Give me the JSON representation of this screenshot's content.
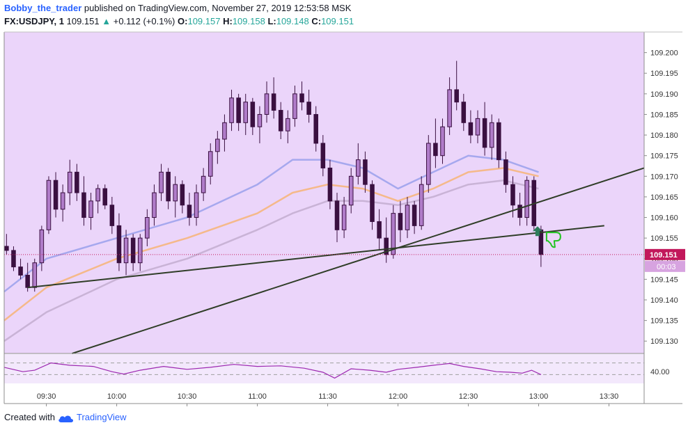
{
  "header": {
    "author": "Bobby_the_trader",
    "published_text": "published on TradingView.com, November 27, 2019 12:53:58 MSK",
    "symbol": "FX:USDJPY, 1",
    "last_price": "109.151",
    "change": "+0.112 (+0.1%)",
    "open_label": "O:",
    "open_value": "109.157",
    "high_label": "H:",
    "high_value": "109.158",
    "low_label": "L:",
    "low_value": "109.148",
    "close_label": "C:",
    "close_value": "109.151"
  },
  "footer": {
    "created_with": "Created with",
    "brand": "TradingView"
  },
  "colors": {
    "background": "#ebd5fa",
    "indicator_bg": "#f3e8fc",
    "candle": "#3a1040",
    "ma_fast": "#a6a8ee",
    "ma_mid": "#f5b98a",
    "ma_slow": "#c9b3d6",
    "trendline": "#2f3d27",
    "oscillator": "#9c27b0",
    "price_label_bg": "#c2185b",
    "up_arrow": "#2e7d5b",
    "thumb_down": "#22c422"
  },
  "chart_data": {
    "type": "candlestick",
    "symbol": "FX:USDJPY",
    "interval": "1",
    "y_ticks": [
      "109.200",
      "109.195",
      "109.190",
      "109.185",
      "109.180",
      "109.175",
      "109.170",
      "109.165",
      "109.160",
      "109.155",
      "109.150",
      "109.145",
      "109.140",
      "109.135",
      "109.130"
    ],
    "x_ticks": [
      "09:30",
      "10:00",
      "10:30",
      "11:00",
      "11:30",
      "12:00",
      "12:30",
      "13:00",
      "13:30"
    ],
    "ylim": [
      109.127,
      109.205
    ],
    "xlim": [
      "09:12",
      "13:45"
    ],
    "current_price": "109.151",
    "countdown": "00:03",
    "candles": [
      {
        "t": "09:13",
        "o": 109.153,
        "h": 109.156,
        "l": 109.151,
        "c": 109.152
      },
      {
        "t": "09:16",
        "o": 109.152,
        "h": 109.153,
        "l": 109.147,
        "c": 109.148
      },
      {
        "t": "09:19",
        "o": 109.148,
        "h": 109.15,
        "l": 109.145,
        "c": 109.146
      },
      {
        "t": "09:22",
        "o": 109.146,
        "h": 109.149,
        "l": 109.142,
        "c": 109.143
      },
      {
        "t": "09:25",
        "o": 109.143,
        "h": 109.15,
        "l": 109.142,
        "c": 109.149
      },
      {
        "t": "09:28",
        "o": 109.149,
        "h": 109.158,
        "l": 109.147,
        "c": 109.157
      },
      {
        "t": "09:31",
        "o": 109.157,
        "h": 109.17,
        "l": 109.156,
        "c": 109.169
      },
      {
        "t": "09:34",
        "o": 109.169,
        "h": 109.171,
        "l": 109.16,
        "c": 109.162
      },
      {
        "t": "09:37",
        "o": 109.162,
        "h": 109.168,
        "l": 109.159,
        "c": 109.166
      },
      {
        "t": "09:40",
        "o": 109.166,
        "h": 109.174,
        "l": 109.163,
        "c": 109.171
      },
      {
        "t": "09:43",
        "o": 109.171,
        "h": 109.173,
        "l": 109.164,
        "c": 109.166
      },
      {
        "t": "09:46",
        "o": 109.166,
        "h": 109.17,
        "l": 109.158,
        "c": 109.16
      },
      {
        "t": "09:49",
        "o": 109.16,
        "h": 109.166,
        "l": 109.157,
        "c": 109.164
      },
      {
        "t": "09:52",
        "o": 109.164,
        "h": 109.168,
        "l": 109.161,
        "c": 109.167
      },
      {
        "t": "09:55",
        "o": 109.167,
        "h": 109.168,
        "l": 109.162,
        "c": 109.163
      },
      {
        "t": "09:58",
        "o": 109.163,
        "h": 109.165,
        "l": 109.156,
        "c": 109.158
      },
      {
        "t": "10:01",
        "o": 109.158,
        "h": 109.161,
        "l": 109.147,
        "c": 109.149
      },
      {
        "t": "10:04",
        "o": 109.149,
        "h": 109.157,
        "l": 109.146,
        "c": 109.155
      },
      {
        "t": "10:07",
        "o": 109.155,
        "h": 109.156,
        "l": 109.147,
        "c": 109.149
      },
      {
        "t": "10:10",
        "o": 109.149,
        "h": 109.156,
        "l": 109.147,
        "c": 109.155
      },
      {
        "t": "10:13",
        "o": 109.155,
        "h": 109.162,
        "l": 109.153,
        "c": 109.16
      },
      {
        "t": "10:16",
        "o": 109.16,
        "h": 109.168,
        "l": 109.158,
        "c": 109.166
      },
      {
        "t": "10:19",
        "o": 109.166,
        "h": 109.173,
        "l": 109.164,
        "c": 109.171
      },
      {
        "t": "10:22",
        "o": 109.171,
        "h": 109.172,
        "l": 109.162,
        "c": 109.164
      },
      {
        "t": "10:25",
        "o": 109.164,
        "h": 109.17,
        "l": 109.16,
        "c": 109.168
      },
      {
        "t": "10:28",
        "o": 109.168,
        "h": 109.169,
        "l": 109.161,
        "c": 109.163
      },
      {
        "t": "10:31",
        "o": 109.163,
        "h": 109.166,
        "l": 109.158,
        "c": 109.16
      },
      {
        "t": "10:34",
        "o": 109.16,
        "h": 109.168,
        "l": 109.158,
        "c": 109.166
      },
      {
        "t": "10:37",
        "o": 109.166,
        "h": 109.172,
        "l": 109.164,
        "c": 109.17
      },
      {
        "t": "10:40",
        "o": 109.17,
        "h": 109.178,
        "l": 109.168,
        "c": 109.176
      },
      {
        "t": "10:43",
        "o": 109.176,
        "h": 109.181,
        "l": 109.173,
        "c": 109.179
      },
      {
        "t": "10:46",
        "o": 109.179,
        "h": 109.185,
        "l": 109.176,
        "c": 109.183
      },
      {
        "t": "10:49",
        "o": 109.183,
        "h": 109.191,
        "l": 109.181,
        "c": 109.189
      },
      {
        "t": "10:52",
        "o": 109.189,
        "h": 109.19,
        "l": 109.181,
        "c": 109.183
      },
      {
        "t": "10:55",
        "o": 109.183,
        "h": 109.19,
        "l": 109.18,
        "c": 109.188
      },
      {
        "t": "10:58",
        "o": 109.188,
        "h": 109.189,
        "l": 109.18,
        "c": 109.182
      },
      {
        "t": "11:01",
        "o": 109.182,
        "h": 109.187,
        "l": 109.178,
        "c": 109.185
      },
      {
        "t": "11:04",
        "o": 109.185,
        "h": 109.193,
        "l": 109.183,
        "c": 109.19
      },
      {
        "t": "11:07",
        "o": 109.19,
        "h": 109.194,
        "l": 109.184,
        "c": 109.186
      },
      {
        "t": "11:10",
        "o": 109.186,
        "h": 109.188,
        "l": 109.179,
        "c": 109.181
      },
      {
        "t": "11:13",
        "o": 109.181,
        "h": 109.186,
        "l": 109.178,
        "c": 109.184
      },
      {
        "t": "11:16",
        "o": 109.184,
        "h": 109.192,
        "l": 109.182,
        "c": 109.19
      },
      {
        "t": "11:19",
        "o": 109.19,
        "h": 109.193,
        "l": 109.186,
        "c": 109.188
      },
      {
        "t": "11:22",
        "o": 109.188,
        "h": 109.191,
        "l": 109.183,
        "c": 109.185
      },
      {
        "t": "11:25",
        "o": 109.185,
        "h": 109.187,
        "l": 109.176,
        "c": 109.178
      },
      {
        "t": "11:28",
        "o": 109.178,
        "h": 109.18,
        "l": 109.17,
        "c": 109.172
      },
      {
        "t": "11:31",
        "o": 109.172,
        "h": 109.174,
        "l": 109.162,
        "c": 109.164
      },
      {
        "t": "11:34",
        "o": 109.164,
        "h": 109.166,
        "l": 109.154,
        "c": 109.157
      },
      {
        "t": "11:37",
        "o": 109.157,
        "h": 109.165,
        "l": 109.155,
        "c": 109.163
      },
      {
        "t": "11:40",
        "o": 109.163,
        "h": 109.172,
        "l": 109.161,
        "c": 109.17
      },
      {
        "t": "11:43",
        "o": 109.17,
        "h": 109.178,
        "l": 109.168,
        "c": 109.174
      },
      {
        "t": "11:46",
        "o": 109.174,
        "h": 109.176,
        "l": 109.166,
        "c": 109.168
      },
      {
        "t": "11:49",
        "o": 109.168,
        "h": 109.169,
        "l": 109.157,
        "c": 109.159
      },
      {
        "t": "11:52",
        "o": 109.159,
        "h": 109.162,
        "l": 109.152,
        "c": 109.155
      },
      {
        "t": "11:55",
        "o": 109.155,
        "h": 109.16,
        "l": 109.149,
        "c": 109.151
      },
      {
        "t": "11:58",
        "o": 109.151,
        "h": 109.163,
        "l": 109.15,
        "c": 109.161
      },
      {
        "t": "12:01",
        "o": 109.161,
        "h": 109.164,
        "l": 109.154,
        "c": 109.157
      },
      {
        "t": "12:04",
        "o": 109.157,
        "h": 109.165,
        "l": 109.155,
        "c": 109.163
      },
      {
        "t": "12:07",
        "o": 109.163,
        "h": 109.164,
        "l": 109.156,
        "c": 109.158
      },
      {
        "t": "12:10",
        "o": 109.158,
        "h": 109.17,
        "l": 109.157,
        "c": 109.168
      },
      {
        "t": "12:13",
        "o": 109.168,
        "h": 109.18,
        "l": 109.166,
        "c": 109.178
      },
      {
        "t": "12:16",
        "o": 109.178,
        "h": 109.184,
        "l": 109.172,
        "c": 109.175
      },
      {
        "t": "12:19",
        "o": 109.175,
        "h": 109.184,
        "l": 109.173,
        "c": 109.182
      },
      {
        "t": "12:22",
        "o": 109.182,
        "h": 109.194,
        "l": 109.18,
        "c": 109.191
      },
      {
        "t": "12:25",
        "o": 109.191,
        "h": 109.198,
        "l": 109.186,
        "c": 109.188
      },
      {
        "t": "12:28",
        "o": 109.188,
        "h": 109.19,
        "l": 109.181,
        "c": 109.183
      },
      {
        "t": "12:31",
        "o": 109.183,
        "h": 109.186,
        "l": 109.178,
        "c": 109.18
      },
      {
        "t": "12:34",
        "o": 109.18,
        "h": 109.186,
        "l": 109.178,
        "c": 109.184
      },
      {
        "t": "12:37",
        "o": 109.184,
        "h": 109.188,
        "l": 109.175,
        "c": 109.177
      },
      {
        "t": "12:40",
        "o": 109.177,
        "h": 109.185,
        "l": 109.174,
        "c": 109.183
      },
      {
        "t": "12:43",
        "o": 109.183,
        "h": 109.184,
        "l": 109.172,
        "c": 109.174
      },
      {
        "t": "12:46",
        "o": 109.174,
        "h": 109.176,
        "l": 109.166,
        "c": 109.168
      },
      {
        "t": "12:49",
        "o": 109.168,
        "h": 109.17,
        "l": 109.16,
        "c": 109.163
      },
      {
        "t": "12:52",
        "o": 109.163,
        "h": 109.166,
        "l": 109.158,
        "c": 109.16
      },
      {
        "t": "12:55",
        "o": 109.16,
        "h": 109.17,
        "l": 109.158,
        "c": 109.169
      },
      {
        "t": "12:58",
        "o": 109.169,
        "h": 109.17,
        "l": 109.157,
        "c": 109.158
      },
      {
        "t": "13:01",
        "o": 109.157,
        "h": 109.158,
        "l": 109.148,
        "c": 109.151
      }
    ],
    "moving_averages": [
      {
        "color": "#a6a8ee",
        "points": [
          [
            "09:12",
            109.142
          ],
          [
            "09:30",
            109.15
          ],
          [
            "10:00",
            109.155
          ],
          [
            "10:30",
            109.16
          ],
          [
            "11:00",
            109.168
          ],
          [
            "11:15",
            109.174
          ],
          [
            "11:30",
            109.174
          ],
          [
            "11:45",
            109.172
          ],
          [
            "12:00",
            109.167
          ],
          [
            "12:15",
            109.171
          ],
          [
            "12:30",
            109.175
          ],
          [
            "12:45",
            109.174
          ],
          [
            "13:00",
            109.171
          ]
        ]
      },
      {
        "color": "#f5b98a",
        "points": [
          [
            "09:12",
            109.135
          ],
          [
            "09:30",
            109.143
          ],
          [
            "10:00",
            109.15
          ],
          [
            "10:30",
            109.155
          ],
          [
            "11:00",
            109.161
          ],
          [
            "11:15",
            109.166
          ],
          [
            "11:30",
            109.168
          ],
          [
            "11:45",
            109.167
          ],
          [
            "12:00",
            109.164
          ],
          [
            "12:15",
            109.167
          ],
          [
            "12:30",
            109.171
          ],
          [
            "12:45",
            109.172
          ],
          [
            "13:00",
            109.17
          ]
        ]
      },
      {
        "color": "#c9b3d6",
        "points": [
          [
            "09:12",
            109.13
          ],
          [
            "09:30",
            109.137
          ],
          [
            "10:00",
            109.145
          ],
          [
            "10:30",
            109.15
          ],
          [
            "11:00",
            109.157
          ],
          [
            "11:15",
            109.161
          ],
          [
            "11:30",
            109.164
          ],
          [
            "11:45",
            109.164
          ],
          [
            "12:00",
            109.163
          ],
          [
            "12:15",
            109.165
          ],
          [
            "12:30",
            109.168
          ],
          [
            "12:45",
            109.169
          ],
          [
            "13:00",
            109.167
          ]
        ]
      }
    ],
    "trendlines": [
      {
        "from": [
          "09:22",
          109.143
        ],
        "to": [
          "13:28",
          109.158
        ]
      },
      {
        "from": [
          "09:41",
          109.127
        ],
        "to": [
          "13:45",
          109.172
        ]
      }
    ],
    "oscillator": {
      "tick": "40.00",
      "ylim": [
        0,
        100
      ],
      "upper_band": 70,
      "lower_band": 30,
      "points": [
        [
          "09:12",
          55
        ],
        [
          "09:20",
          40
        ],
        [
          "09:25",
          45
        ],
        [
          "09:32",
          70
        ],
        [
          "09:40",
          62
        ],
        [
          "09:50",
          58
        ],
        [
          "09:58",
          40
        ],
        [
          "10:03",
          32
        ],
        [
          "10:10",
          45
        ],
        [
          "10:20",
          58
        ],
        [
          "10:30",
          48
        ],
        [
          "10:40",
          55
        ],
        [
          "10:50",
          65
        ],
        [
          "11:00",
          58
        ],
        [
          "11:10",
          60
        ],
        [
          "11:20",
          52
        ],
        [
          "11:28",
          38
        ],
        [
          "11:33",
          18
        ],
        [
          "11:40",
          50
        ],
        [
          "11:48",
          45
        ],
        [
          "11:55",
          38
        ],
        [
          "12:00",
          48
        ],
        [
          "12:08",
          55
        ],
        [
          "12:15",
          62
        ],
        [
          "12:22",
          68
        ],
        [
          "12:28",
          58
        ],
        [
          "12:35",
          50
        ],
        [
          "12:42",
          40
        ],
        [
          "12:48",
          38
        ],
        [
          "12:53",
          35
        ],
        [
          "12:57",
          45
        ],
        [
          "13:01",
          30
        ]
      ]
    }
  }
}
